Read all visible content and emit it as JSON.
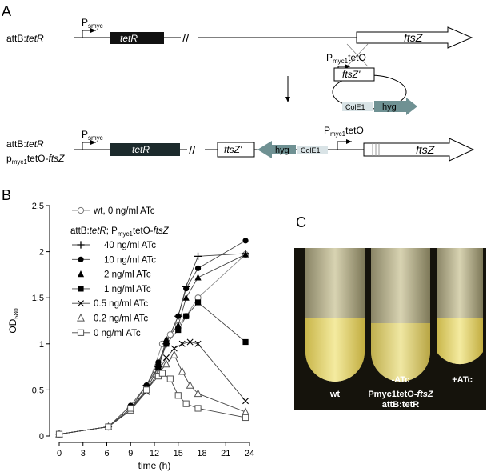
{
  "panel_a": {
    "label": "A",
    "row1": {
      "strain": [
        "attB:",
        "tetR"
      ],
      "promoter": [
        "P",
        "smyc"
      ],
      "gene": "tetR",
      "break": "//",
      "target": "ftsZ"
    },
    "plasmid": {
      "promoter": [
        "P",
        "myc1",
        "tetO"
      ],
      "fragment": "ftsZ'",
      "origin": "ColE1",
      "marker": "hyg"
    },
    "row2": {
      "strain": [
        "attB:",
        "tetR"
      ],
      "strain2": [
        "p",
        "myc1",
        "tetO-",
        "ftsZ"
      ],
      "promoter": [
        "P",
        "smyc"
      ],
      "gene": "tetR",
      "break": "//",
      "fragment": "ftsZ'",
      "marker": "hyg",
      "origin": "ColE1",
      "promoter2": [
        "P",
        "myc1",
        "tetO"
      ],
      "target": "ftsZ"
    }
  },
  "chart_data": {
    "type": "line",
    "label": "B",
    "x_label": "time (h)",
    "y_label": [
      "OD",
      "580"
    ],
    "legend_title": [
      "attB:",
      "tetR",
      "; P",
      "myc1",
      "tetO-",
      "ftsZ"
    ],
    "xlim": [
      0,
      24
    ],
    "xticks": [
      0,
      3,
      6,
      9,
      12,
      15,
      18,
      21,
      24
    ],
    "ylim": [
      0,
      2.5
    ],
    "yticks": [
      0,
      0.5,
      1,
      1.5,
      2,
      2.5
    ],
    "series": [
      {
        "name": "wt, 0 ng/ml ATc",
        "marker": "circle-open",
        "color": "#888888",
        "x": [
          0,
          6.2,
          9,
          11,
          13,
          14,
          15,
          16,
          17.5,
          23.5
        ],
        "values": [
          0.02,
          0.1,
          0.3,
          0.5,
          1.0,
          1.1,
          1.2,
          1.3,
          1.5,
          1.97
        ]
      },
      {
        "name": "40 ng/ml ATc",
        "marker": "plus",
        "color": "#444444",
        "x": [
          0,
          6.2,
          9,
          11,
          12.5,
          13.5,
          15,
          16,
          17.5,
          23.5
        ],
        "values": [
          0.02,
          0.1,
          0.3,
          0.55,
          0.75,
          1.0,
          1.3,
          1.62,
          1.95,
          1.98
        ]
      },
      {
        "name": "10 ng/ml ATc",
        "marker": "circle",
        "color": "#444444",
        "x": [
          0,
          6.2,
          9,
          11,
          12.5,
          13.5,
          15,
          16,
          17.5,
          23.5
        ],
        "values": [
          0.02,
          0.1,
          0.33,
          0.55,
          0.8,
          1.0,
          1.3,
          1.6,
          1.82,
          2.12
        ]
      },
      {
        "name": "2 ng/ml ATc",
        "marker": "triangle",
        "color": "#444444",
        "x": [
          0,
          6.2,
          9,
          11,
          12.5,
          13.5,
          15,
          16,
          17.5,
          23.5
        ],
        "values": [
          0.02,
          0.1,
          0.3,
          0.5,
          0.75,
          1.05,
          1.2,
          1.5,
          1.72,
          1.97
        ]
      },
      {
        "name": "1 ng/ml ATc",
        "marker": "square",
        "color": "#444444",
        "x": [
          0,
          6.2,
          9,
          11,
          12.5,
          13.5,
          15,
          16,
          17.5,
          23.5
        ],
        "values": [
          0.02,
          0.1,
          0.28,
          0.5,
          0.75,
          1.0,
          1.15,
          1.3,
          1.45,
          1.02
        ]
      },
      {
        "name": "0.5 ng/ml ATc",
        "marker": "x",
        "color": "#444444",
        "x": [
          0,
          6.2,
          9,
          11,
          12.5,
          13.5,
          14.5,
          15.5,
          16.5,
          17.5,
          23.5
        ],
        "values": [
          0.02,
          0.1,
          0.28,
          0.48,
          0.7,
          0.85,
          0.95,
          1.0,
          1.02,
          1.0,
          0.38
        ]
      },
      {
        "name": "0.2 ng/ml ATc",
        "marker": "triangle-open",
        "color": "#444444",
        "x": [
          0,
          6.2,
          9,
          11,
          12.5,
          13.5,
          14.5,
          15.5,
          16.5,
          17.5,
          23.5
        ],
        "values": [
          0.02,
          0.1,
          0.28,
          0.5,
          0.68,
          0.78,
          0.88,
          0.7,
          0.55,
          0.46,
          0.26
        ]
      },
      {
        "name": "0 ng/ml ATc",
        "marker": "square-open",
        "color": "#444444",
        "x": [
          0,
          6.2,
          9,
          11,
          12.5,
          13,
          14,
          15,
          16,
          17.5,
          23.5
        ],
        "values": [
          0.02,
          0.1,
          0.3,
          0.5,
          0.65,
          0.68,
          0.62,
          0.44,
          0.35,
          0.3,
          0.2
        ]
      }
    ]
  },
  "panel_c": {
    "label": "C",
    "tube1": "wt",
    "tube2": "-ATc",
    "tube3": "+ATc",
    "strain": [
      "Pmyc1tetO-",
      "ftsZ"
    ],
    "strain2": "attB:tetR"
  }
}
